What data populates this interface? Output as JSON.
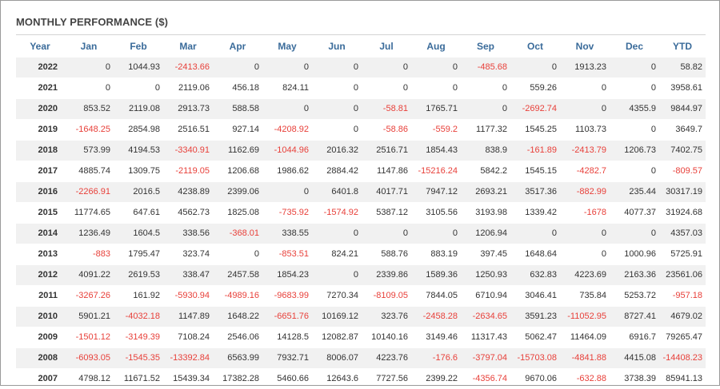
{
  "title": "MONTHLY PERFORMANCE ($)",
  "headers": [
    "Year",
    "Jan",
    "Feb",
    "Mar",
    "Apr",
    "May",
    "Jun",
    "Jul",
    "Aug",
    "Sep",
    "Oct",
    "Nov",
    "Dec",
    "YTD"
  ],
  "colors": {
    "header": "#3a6b9a",
    "negative": "#e8403a",
    "text": "#333333",
    "stripe": "#f1f1f1"
  },
  "rows": [
    {
      "year": "2022",
      "values": [
        "0",
        "1044.93",
        "-2413.66",
        "0",
        "0",
        "0",
        "0",
        "0",
        "-485.68",
        "0",
        "1913.23",
        "0",
        "58.82"
      ]
    },
    {
      "year": "2021",
      "values": [
        "0",
        "0",
        "2119.06",
        "456.18",
        "824.11",
        "0",
        "0",
        "0",
        "0",
        "559.26",
        "0",
        "0",
        "3958.61"
      ]
    },
    {
      "year": "2020",
      "values": [
        "853.52",
        "2119.08",
        "2913.73",
        "588.58",
        "0",
        "0",
        "-58.81",
        "1765.71",
        "0",
        "-2692.74",
        "0",
        "4355.9",
        "9844.97"
      ]
    },
    {
      "year": "2019",
      "values": [
        "-1648.25",
        "2854.98",
        "2516.51",
        "927.14",
        "-4208.92",
        "0",
        "-58.86",
        "-559.2",
        "1177.32",
        "1545.25",
        "1103.73",
        "0",
        "3649.7"
      ]
    },
    {
      "year": "2018",
      "values": [
        "573.99",
        "4194.53",
        "-3340.91",
        "1162.69",
        "-1044.96",
        "2016.32",
        "2516.71",
        "1854.43",
        "838.9",
        "-161.89",
        "-2413.79",
        "1206.73",
        "7402.75"
      ]
    },
    {
      "year": "2017",
      "values": [
        "4885.74",
        "1309.75",
        "-2119.05",
        "1206.68",
        "1986.62",
        "2884.42",
        "1147.86",
        "-15216.24",
        "5842.2",
        "1545.15",
        "-4282.7",
        "0",
        "-809.57"
      ]
    },
    {
      "year": "2016",
      "values": [
        "-2266.91",
        "2016.5",
        "4238.89",
        "2399.06",
        "0",
        "6401.8",
        "4017.71",
        "7947.12",
        "2693.21",
        "3517.36",
        "-882.99",
        "235.44",
        "30317.19"
      ]
    },
    {
      "year": "2015",
      "values": [
        "11774.65",
        "647.61",
        "4562.73",
        "1825.08",
        "-735.92",
        "-1574.92",
        "5387.12",
        "3105.56",
        "3193.98",
        "1339.42",
        "-1678",
        "4077.37",
        "31924.68"
      ]
    },
    {
      "year": "2014",
      "values": [
        "1236.49",
        "1604.5",
        "338.56",
        "-368.01",
        "338.55",
        "0",
        "0",
        "0",
        "1206.94",
        "0",
        "0",
        "0",
        "4357.03"
      ]
    },
    {
      "year": "2013",
      "values": [
        "-883",
        "1795.47",
        "323.74",
        "0",
        "-853.51",
        "824.21",
        "588.76",
        "883.19",
        "397.45",
        "1648.64",
        "0",
        "1000.96",
        "5725.91"
      ]
    },
    {
      "year": "2012",
      "values": [
        "4091.22",
        "2619.53",
        "338.47",
        "2457.58",
        "1854.23",
        "0",
        "2339.86",
        "1589.36",
        "1250.93",
        "632.83",
        "4223.69",
        "2163.36",
        "23561.06"
      ]
    },
    {
      "year": "2011",
      "values": [
        "-3267.26",
        "161.92",
        "-5930.94",
        "-4989.16",
        "-9683.99",
        "7270.34",
        "-8109.05",
        "7844.05",
        "6710.94",
        "3046.41",
        "735.84",
        "5253.72",
        "-957.18"
      ]
    },
    {
      "year": "2010",
      "values": [
        "5901.21",
        "-4032.18",
        "1147.89",
        "1648.22",
        "-6651.76",
        "10169.12",
        "323.76",
        "-2458.28",
        "-2634.65",
        "3591.23",
        "-11052.95",
        "8727.41",
        "4679.02"
      ]
    },
    {
      "year": "2009",
      "values": [
        "-1501.12",
        "-3149.39",
        "7108.24",
        "2546.06",
        "14128.5",
        "12082.87",
        "10140.16",
        "3149.46",
        "11317.43",
        "5062.47",
        "11464.09",
        "6916.7",
        "79265.47"
      ]
    },
    {
      "year": "2008",
      "values": [
        "-6093.05",
        "-1545.35",
        "-13392.84",
        "6563.99",
        "7932.71",
        "8006.07",
        "4223.76",
        "-176.6",
        "-3797.04",
        "-15703.08",
        "-4841.88",
        "4415.08",
        "-14408.23"
      ]
    },
    {
      "year": "2007",
      "values": [
        "4798.12",
        "11671.52",
        "15439.34",
        "17382.28",
        "5460.66",
        "12643.6",
        "7727.56",
        "2399.22",
        "-4356.74",
        "9670.06",
        "-632.88",
        "3738.39",
        "85941.13"
      ]
    }
  ]
}
